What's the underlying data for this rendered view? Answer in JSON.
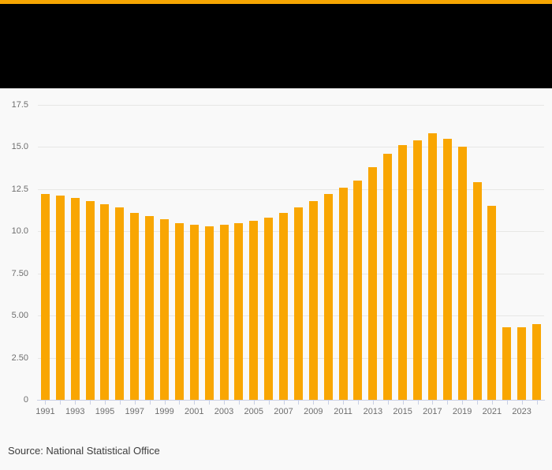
{
  "accent_bar_color": "#F6A602",
  "header": {
    "background_color": "#000000"
  },
  "chart_data": {
    "type": "bar",
    "x": [
      1991,
      1992,
      1993,
      1994,
      1995,
      1996,
      1997,
      1998,
      1999,
      2000,
      2001,
      2002,
      2003,
      2004,
      2005,
      2006,
      2007,
      2008,
      2009,
      2010,
      2011,
      2012,
      2013,
      2014,
      2015,
      2016,
      2017,
      2018,
      2019,
      2020,
      2021,
      2022,
      2023,
      2024
    ],
    "values": [
      12.2,
      12.1,
      12.0,
      11.8,
      11.6,
      11.4,
      11.1,
      10.9,
      10.7,
      10.5,
      10.4,
      10.3,
      10.4,
      10.5,
      10.6,
      10.8,
      11.1,
      11.4,
      11.8,
      12.2,
      12.6,
      13.0,
      13.8,
      14.6,
      15.1,
      15.4,
      15.8,
      15.5,
      15.0,
      12.9,
      11.5,
      4.3,
      4.3,
      4.5
    ],
    "title": "",
    "xlabel": "",
    "ylabel": "",
    "ylim": [
      0,
      17.5
    ],
    "yticks": [
      0,
      2.5,
      5.0,
      7.5,
      10.0,
      12.5,
      15.0,
      17.5
    ],
    "ytick_labels": [
      "0",
      "2.50",
      "5.00",
      "7.50",
      "10.0",
      "12.5",
      "15.0",
      "17.5"
    ],
    "xtick_labels": [
      "1991",
      "1993",
      "1995",
      "1997",
      "1999",
      "2001",
      "2003",
      "2005",
      "2007",
      "2009",
      "2011",
      "2013",
      "2015",
      "2017",
      "2019",
      "2021",
      "2023"
    ],
    "grid": true,
    "legend": false,
    "bar_color": "#F9A602",
    "gridline_color": "#e7e7e5",
    "axis_color": "#c9cfe3",
    "tick_label_color": "#6e6e6e",
    "background_color": "#f9f9f9"
  },
  "source": {
    "label": "Source: National Statistical Office"
  }
}
